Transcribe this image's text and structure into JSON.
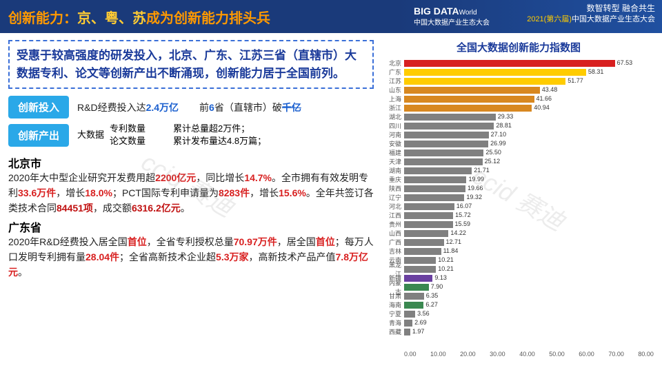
{
  "header": {
    "title_pre": "创新能力：",
    "title_hl": "京、粤、苏",
    "title_post": "成为创新能力排头兵",
    "logo_big": "BIG DATA",
    "logo_world": "World",
    "logo_sub": "中国大数据产业生态大会",
    "r1": "数智转型  融合共生",
    "r2a": "2021(第六届)",
    "r2b": "中国大数据产业生态大会"
  },
  "summary": "受惠于较高强度的研发投入，北京、广东、江苏三省（直辖市）大数据专利、论文等创新产出不断涌现，创新能力居于全国前列。",
  "inv": {
    "badge": "创新投入",
    "t1a": "R&D经费投入达",
    "t1b": "2.4万亿",
    "t2a": "前",
    "t2b": "6",
    "t2c": "省（直辖市）破",
    "t2d": "千亿"
  },
  "out": {
    "badge": "创新产出",
    "label": "大数据",
    "c1a": "专利数量",
    "c1b": "论文数量",
    "c2a": "累计总量超2万件；",
    "c2b": "累计发布量达4.8万篇；"
  },
  "bj": {
    "title": "北京市",
    "body": "2020年大中型企业研究开发费用超<span class='red'>2200亿元</span>，同比增长<span class='red'>14.7%</span>。全市拥有有效发明专利<span class='red'>33.6万件</span>，增长<span class='red'>18.0%</span>；PCT国际专利申请量为<span class='red'>8283件</span>，增长<span class='red'>15.6%</span>。全年共签订各类技术合同<span class='reddk'>84451项</span>，成交额<span class='reddk'>6316.2亿元</span>。"
  },
  "gd": {
    "title": "广东省",
    "body": "2020年R&D经费投入居全国<span class='red'>首位</span>，全省专利授权总量<span class='red'>70.97万件</span>，居全国<span class='red'>首位</span>；每万人口发明专利拥有量<span class='red'>28.04件</span>；全省高新技术企业超<span class='red'>5.3万家</span>，高新技术产品产值<span class='red'>7.8万亿元</span>。"
  },
  "chart": {
    "title": "全国大数据创新能力指数图",
    "max": 80,
    "ticks": [
      "0.00",
      "10.00",
      "20.00",
      "30.00",
      "40.00",
      "50.00",
      "60.00",
      "70.00",
      "80.00"
    ],
    "bars": [
      {
        "n": "北京",
        "v": 67.53,
        "c": "#d82020"
      },
      {
        "n": "广东",
        "v": 58.31,
        "c": "#ffcc00"
      },
      {
        "n": "江苏",
        "v": 51.77,
        "c": "#ffcc00"
      },
      {
        "n": "山东",
        "v": 43.48,
        "c": "#d88820"
      },
      {
        "n": "上海",
        "v": 41.66,
        "c": "#d88820"
      },
      {
        "n": "浙江",
        "v": 40.94,
        "c": "#d88820"
      },
      {
        "n": "湖北",
        "v": 29.33,
        "c": "#808080"
      },
      {
        "n": "四川",
        "v": 28.81,
        "c": "#808080"
      },
      {
        "n": "河南",
        "v": 27.1,
        "c": "#808080"
      },
      {
        "n": "安徽",
        "v": 26.99,
        "c": "#808080"
      },
      {
        "n": "福建",
        "v": 25.5,
        "c": "#808080"
      },
      {
        "n": "天津",
        "v": 25.12,
        "c": "#808080"
      },
      {
        "n": "湖南",
        "v": 21.71,
        "c": "#808080"
      },
      {
        "n": "重庆",
        "v": 19.99,
        "c": "#808080"
      },
      {
        "n": "陕西",
        "v": 19.66,
        "c": "#808080"
      },
      {
        "n": "辽宁",
        "v": 19.32,
        "c": "#808080"
      },
      {
        "n": "河北",
        "v": 16.07,
        "c": "#808080"
      },
      {
        "n": "江西",
        "v": 15.72,
        "c": "#808080"
      },
      {
        "n": "贵州",
        "v": 15.59,
        "c": "#808080"
      },
      {
        "n": "山西",
        "v": 14.22,
        "c": "#808080"
      },
      {
        "n": "广西",
        "v": 12.71,
        "c": "#808080"
      },
      {
        "n": "吉林",
        "v": 11.84,
        "c": "#808080"
      },
      {
        "n": "云南",
        "v": 10.21,
        "c": "#808080"
      },
      {
        "n": "黑龙江",
        "v": 10.21,
        "c": "#808080"
      },
      {
        "n": "新疆",
        "v": 9.13,
        "c": "#6a40a0"
      },
      {
        "n": "内蒙古",
        "v": 7.9,
        "c": "#3a8850"
      },
      {
        "n": "甘肃",
        "v": 6.35,
        "c": "#808080"
      },
      {
        "n": "海南",
        "v": 6.27,
        "c": "#3a8850"
      },
      {
        "n": "宁夏",
        "v": 3.56,
        "c": "#808080"
      },
      {
        "n": "青海",
        "v": 2.69,
        "c": "#808080"
      },
      {
        "n": "西藏",
        "v": 1.97,
        "c": "#808080"
      }
    ]
  },
  "watermark": "ccid 赛迪"
}
